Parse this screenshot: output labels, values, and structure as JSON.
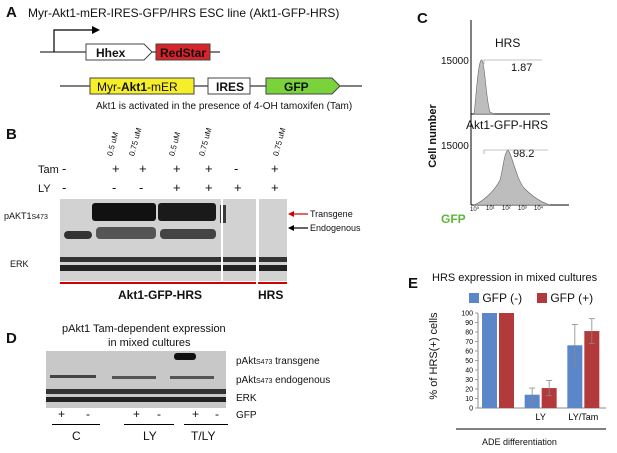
{
  "panelA": {
    "letter": "A",
    "title": "Myr-Akt1-mER-IRES-GFP/HRS ESC line (Akt1-GFP-HRS)",
    "hhex": "Hhex",
    "redstar": "RedStar",
    "myr_pre": "Myr-",
    "myr_bold": "Akt1",
    "myr_post": "-mER",
    "ires": "IRES",
    "gfp": "GFP",
    "caption": "Akt1 is activated in the presence of 4-OH tamoxifen (Tam)"
  },
  "panelB": {
    "letter": "B",
    "doses": [
      "0.5 uM",
      "0.75 uM",
      "0.5 uM",
      "0.75 uM",
      "0.75 uM"
    ],
    "tam_label": "Tam",
    "ly_label": "LY",
    "tam_marks": [
      "-",
      "+",
      "+",
      "+",
      "+",
      "-",
      "+"
    ],
    "ly_marks": [
      "-",
      "-",
      "-",
      "+",
      "+",
      "+",
      "+"
    ],
    "pakt_label_main": "pAKT1",
    "pakt_label_sub": "S473",
    "erk_label": "ERK",
    "transgene_label": "Transgene",
    "endogenous_label": "Endogenous",
    "group1": "Akt1-GFP-HRS",
    "group2": "HRS",
    "red_color": "#d00000"
  },
  "panelC": {
    "letter": "C",
    "ylabel": "Cell number",
    "xlabel": "GFP",
    "top_title": "HRS",
    "top_ymax": "15000",
    "top_value": "1.87",
    "bottom_title": "Akt1-GFP-HRS",
    "bottom_ymax": "15000",
    "bottom_value": "98.2",
    "xticks": [
      "10⁰",
      "10¹",
      "10²",
      "10³",
      "10⁴"
    ]
  },
  "panelD": {
    "letter": "D",
    "title_line1": "pAkt1 Tam-dependent expression",
    "title_line2": "in mixed cultures",
    "transgene_label": "pAkt",
    "transgene_sub": "S473",
    "transgene_suffix": " transgene",
    "endog_label": "pAkt",
    "endog_sub": "S473",
    "endog_suffix": " endogenous",
    "erk_label": "ERK",
    "gfp_label": "GFP",
    "gfp_marks": [
      "+",
      "-",
      "+",
      "-",
      "+",
      "-"
    ],
    "groups": [
      "C",
      "LY",
      "T/LY"
    ]
  },
  "panelE": {
    "letter": "E",
    "title": "HRS expression in mixed cultures",
    "ylabel": "% of HRS(+) cells",
    "xlabel": "ADE differentiation",
    "legend_neg": "GFP (-)",
    "legend_pos": "GFP (+)",
    "color_neg": "#5b86c9",
    "color_pos": "#b33a3a"
  },
  "chart_data": {
    "type": "bar",
    "title": "HRS expression in mixed cultures",
    "xlabel": "ADE differentiation",
    "ylabel": "% of HRS(+) cells",
    "categories": [
      "",
      "LY",
      "LY/Tam"
    ],
    "series": [
      {
        "name": "GFP (-)",
        "values": [
          100,
          14,
          66
        ],
        "errors": [
          0,
          7,
          22
        ]
      },
      {
        "name": "GFP (+)",
        "values": [
          100,
          21,
          81
        ],
        "errors": [
          0,
          8,
          13
        ]
      }
    ],
    "ylim": [
      0,
      100
    ],
    "yticks": [
      0,
      10,
      20,
      30,
      40,
      50,
      60,
      70,
      80,
      90,
      100
    ],
    "legend": "top"
  }
}
